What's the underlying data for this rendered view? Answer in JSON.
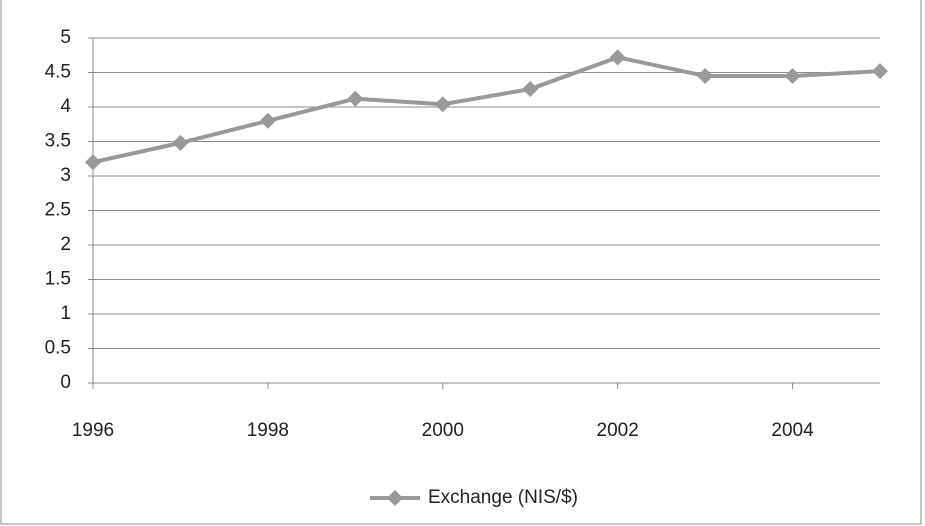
{
  "chart_data": {
    "type": "line",
    "x": [
      1996,
      1997,
      1998,
      1999,
      2000,
      2001,
      2002,
      2003,
      2004,
      2005
    ],
    "series": [
      {
        "name": "Exchange (NIS/$)",
        "color": "#999999",
        "values": [
          3.2,
          3.48,
          3.8,
          4.12,
          4.04,
          4.26,
          4.72,
          4.45,
          4.45,
          4.52
        ]
      }
    ],
    "xlim": [
      1996,
      2005
    ],
    "xticks": [
      1996,
      1998,
      2000,
      2002,
      2004
    ],
    "ylim": [
      0,
      5
    ],
    "yticks": [
      0,
      0.5,
      1,
      1.5,
      2,
      2.5,
      3,
      3.5,
      4,
      4.5,
      5
    ],
    "grid": true,
    "legend": "bottom"
  }
}
